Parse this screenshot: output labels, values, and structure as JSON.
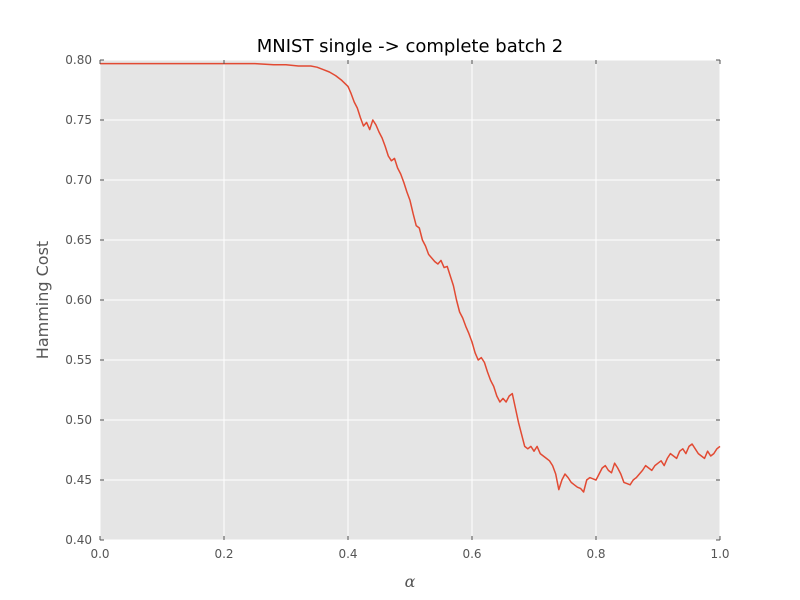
{
  "chart_data": {
    "type": "line",
    "title": "MNIST single -> complete batch 2",
    "xlabel": "α",
    "ylabel": "Hamming Cost",
    "xlim": [
      0.0,
      1.0
    ],
    "ylim": [
      0.4,
      0.8
    ],
    "xticks": [
      "0.0",
      "0.2",
      "0.4",
      "0.6",
      "0.8",
      "1.0"
    ],
    "yticks": [
      "0.40",
      "0.45",
      "0.50",
      "0.55",
      "0.60",
      "0.65",
      "0.70",
      "0.75",
      "0.80"
    ],
    "grid": true,
    "colors": {
      "background": "#e5e5e5",
      "grid": "#ffffff",
      "line": "#e24a33"
    },
    "series": [
      {
        "x": [
          0.0,
          0.05,
          0.1,
          0.15,
          0.2,
          0.25,
          0.28,
          0.3,
          0.32,
          0.34,
          0.35,
          0.36,
          0.37,
          0.38,
          0.39,
          0.4,
          0.405,
          0.41,
          0.415,
          0.42,
          0.425,
          0.43,
          0.435,
          0.44,
          0.445,
          0.45,
          0.455,
          0.46,
          0.465,
          0.47,
          0.475,
          0.48,
          0.485,
          0.49,
          0.495,
          0.5,
          0.505,
          0.51,
          0.515,
          0.52,
          0.525,
          0.53,
          0.535,
          0.54,
          0.545,
          0.55,
          0.555,
          0.56,
          0.565,
          0.57,
          0.575,
          0.58,
          0.585,
          0.59,
          0.595,
          0.6,
          0.605,
          0.61,
          0.615,
          0.62,
          0.625,
          0.63,
          0.635,
          0.64,
          0.645,
          0.65,
          0.655,
          0.66,
          0.665,
          0.67,
          0.675,
          0.68,
          0.685,
          0.69,
          0.695,
          0.7,
          0.705,
          0.71,
          0.715,
          0.72,
          0.725,
          0.73,
          0.735,
          0.74,
          0.745,
          0.75,
          0.755,
          0.76,
          0.765,
          0.77,
          0.775,
          0.78,
          0.785,
          0.79,
          0.795,
          0.8,
          0.805,
          0.81,
          0.815,
          0.82,
          0.825,
          0.83,
          0.835,
          0.84,
          0.845,
          0.85,
          0.855,
          0.86,
          0.865,
          0.87,
          0.875,
          0.88,
          0.885,
          0.89,
          0.895,
          0.9,
          0.905,
          0.91,
          0.915,
          0.92,
          0.925,
          0.93,
          0.935,
          0.94,
          0.945,
          0.95,
          0.955,
          0.96,
          0.965,
          0.97,
          0.975,
          0.98,
          0.985,
          0.99,
          0.995,
          1.0
        ],
        "y": [
          0.797,
          0.797,
          0.797,
          0.797,
          0.797,
          0.797,
          0.796,
          0.796,
          0.795,
          0.795,
          0.794,
          0.792,
          0.79,
          0.787,
          0.783,
          0.778,
          0.772,
          0.765,
          0.76,
          0.752,
          0.745,
          0.748,
          0.742,
          0.75,
          0.746,
          0.74,
          0.735,
          0.728,
          0.72,
          0.716,
          0.718,
          0.71,
          0.705,
          0.698,
          0.69,
          0.683,
          0.672,
          0.662,
          0.66,
          0.65,
          0.645,
          0.638,
          0.635,
          0.632,
          0.63,
          0.633,
          0.627,
          0.628,
          0.62,
          0.612,
          0.6,
          0.59,
          0.585,
          0.578,
          0.572,
          0.565,
          0.556,
          0.55,
          0.552,
          0.548,
          0.54,
          0.533,
          0.528,
          0.52,
          0.515,
          0.518,
          0.515,
          0.52,
          0.522,
          0.51,
          0.498,
          0.488,
          0.478,
          0.476,
          0.478,
          0.474,
          0.478,
          0.472,
          0.47,
          0.468,
          0.466,
          0.462,
          0.455,
          0.442,
          0.45,
          0.455,
          0.452,
          0.448,
          0.446,
          0.444,
          0.443,
          0.44,
          0.45,
          0.452,
          0.451,
          0.45,
          0.455,
          0.46,
          0.462,
          0.458,
          0.456,
          0.464,
          0.46,
          0.455,
          0.448,
          0.447,
          0.446,
          0.45,
          0.452,
          0.455,
          0.458,
          0.462,
          0.46,
          0.458,
          0.462,
          0.464,
          0.466,
          0.462,
          0.468,
          0.472,
          0.47,
          0.468,
          0.474,
          0.476,
          0.472,
          0.478,
          0.48,
          0.476,
          0.472,
          0.47,
          0.468,
          0.474,
          0.47,
          0.472,
          0.476,
          0.478
        ]
      }
    ]
  }
}
